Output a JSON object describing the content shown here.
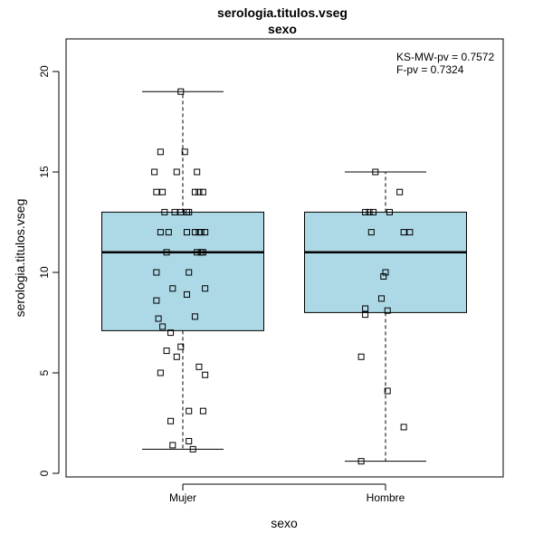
{
  "chart_data": {
    "type": "boxplot",
    "title": "serologia.titulos.vseg",
    "subtitle": "sexo",
    "xlabel": "sexo",
    "ylabel": "serologia.titulos.vseg",
    "ylim": [
      0,
      21.3
    ],
    "yticks": [
      0,
      5,
      10,
      15,
      20
    ],
    "categories": [
      "Mujer",
      "Hombre"
    ],
    "box_fill": "#add8e6",
    "annotations": [
      "KS-MW-pv = 0.7572",
      "F-pv = 0.7324"
    ],
    "boxes": [
      {
        "category": "Mujer",
        "whisker_low": 1.2,
        "q1": 7.1,
        "median": 11,
        "q3": 13,
        "whisker_high": 19
      },
      {
        "category": "Hombre",
        "whisker_low": 0.6,
        "q1": 8,
        "median": 11,
        "q3": 13,
        "whisker_high": 15
      }
    ],
    "points": [
      {
        "group": 0,
        "values": [
          {
            "x": 0.99,
            "y": 19
          },
          {
            "x": 0.89,
            "y": 16
          },
          {
            "x": 1.01,
            "y": 16
          },
          {
            "x": 0.86,
            "y": 15
          },
          {
            "x": 0.97,
            "y": 15
          },
          {
            "x": 1.07,
            "y": 15
          },
          {
            "x": 0.87,
            "y": 14
          },
          {
            "x": 0.9,
            "y": 14
          },
          {
            "x": 1.06,
            "y": 14
          },
          {
            "x": 1.08,
            "y": 14
          },
          {
            "x": 1.1,
            "y": 14
          },
          {
            "x": 0.91,
            "y": 13
          },
          {
            "x": 0.96,
            "y": 13
          },
          {
            "x": 0.99,
            "y": 13
          },
          {
            "x": 1.02,
            "y": 13
          },
          {
            "x": 1.03,
            "y": 13
          },
          {
            "x": 0.89,
            "y": 12
          },
          {
            "x": 0.93,
            "y": 12
          },
          {
            "x": 1.02,
            "y": 12
          },
          {
            "x": 1.06,
            "y": 12
          },
          {
            "x": 1.08,
            "y": 12
          },
          {
            "x": 1.09,
            "y": 12
          },
          {
            "x": 1.11,
            "y": 12
          },
          {
            "x": 0.92,
            "y": 11
          },
          {
            "x": 1.07,
            "y": 11
          },
          {
            "x": 1.09,
            "y": 11
          },
          {
            "x": 1.1,
            "y": 11
          },
          {
            "x": 0.87,
            "y": 10
          },
          {
            "x": 1.03,
            "y": 10
          },
          {
            "x": 0.95,
            "y": 9.2
          },
          {
            "x": 1.11,
            "y": 9.2
          },
          {
            "x": 1.02,
            "y": 8.9
          },
          {
            "x": 0.87,
            "y": 8.6
          },
          {
            "x": 1.06,
            "y": 7.8
          },
          {
            "x": 0.88,
            "y": 7.7
          },
          {
            "x": 0.9,
            "y": 7.3
          },
          {
            "x": 0.94,
            "y": 7
          },
          {
            "x": 0.99,
            "y": 6.3
          },
          {
            "x": 0.92,
            "y": 6.1
          },
          {
            "x": 0.97,
            "y": 5.8
          },
          {
            "x": 1.08,
            "y": 5.3
          },
          {
            "x": 0.89,
            "y": 5
          },
          {
            "x": 1.11,
            "y": 4.9
          },
          {
            "x": 1.03,
            "y": 3.1
          },
          {
            "x": 1.1,
            "y": 3.1
          },
          {
            "x": 0.94,
            "y": 2.6
          },
          {
            "x": 1.03,
            "y": 1.6
          },
          {
            "x": 0.95,
            "y": 1.4
          },
          {
            "x": 1.05,
            "y": 1.2
          }
        ]
      },
      {
        "group": 1,
        "values": [
          {
            "x": 1.95,
            "y": 15
          },
          {
            "x": 2.07,
            "y": 14
          },
          {
            "x": 1.9,
            "y": 13
          },
          {
            "x": 1.92,
            "y": 13
          },
          {
            "x": 1.94,
            "y": 13
          },
          {
            "x": 2.02,
            "y": 13
          },
          {
            "x": 1.93,
            "y": 12
          },
          {
            "x": 2.09,
            "y": 12
          },
          {
            "x": 2.12,
            "y": 12
          },
          {
            "x": 2.0,
            "y": 10
          },
          {
            "x": 1.99,
            "y": 9.8
          },
          {
            "x": 1.98,
            "y": 8.7
          },
          {
            "x": 1.9,
            "y": 8.2
          },
          {
            "x": 2.01,
            "y": 8.1
          },
          {
            "x": 1.9,
            "y": 7.9
          },
          {
            "x": 1.88,
            "y": 5.8
          },
          {
            "x": 2.01,
            "y": 4.1
          },
          {
            "x": 2.09,
            "y": 2.3
          },
          {
            "x": 1.88,
            "y": 0.6
          }
        ]
      }
    ]
  }
}
